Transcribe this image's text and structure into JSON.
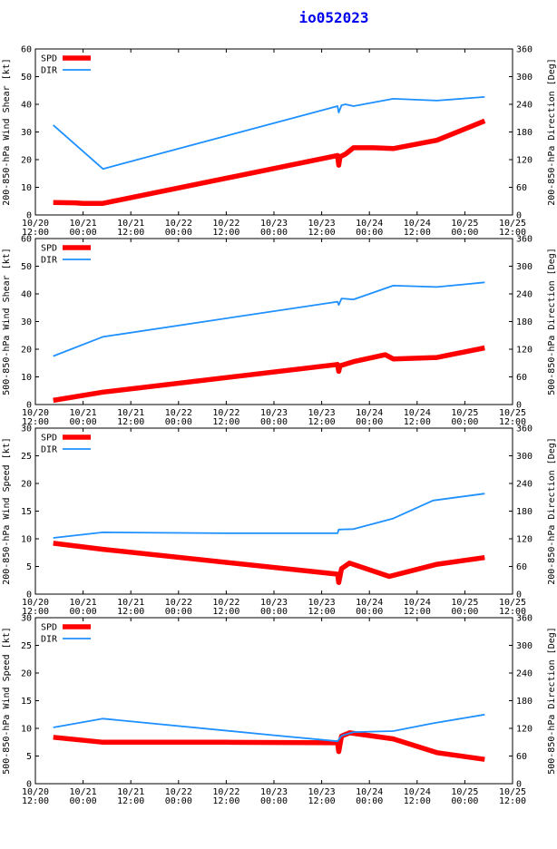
{
  "title": "io052023",
  "colors": {
    "spd": "#ff0000",
    "dir": "#1e90ff",
    "axis": "#000000",
    "title": "#0000ee"
  },
  "chart_data": {
    "type": "line",
    "x_ticks": [
      {
        "date": "10/20",
        "time": "12:00",
        "t": 0
      },
      {
        "date": "10/21",
        "time": "00:00",
        "t": 12
      },
      {
        "date": "10/21",
        "time": "12:00",
        "t": 24
      },
      {
        "date": "10/22",
        "time": "00:00",
        "t": 36
      },
      {
        "date": "10/22",
        "time": "12:00",
        "t": 48
      },
      {
        "date": "10/23",
        "time": "00:00",
        "t": 60
      },
      {
        "date": "10/23",
        "time": "12:00",
        "t": 72
      },
      {
        "date": "10/24",
        "time": "00:00",
        "t": 84
      },
      {
        "date": "10/24",
        "time": "12:00",
        "t": 96
      },
      {
        "date": "10/25",
        "time": "00:00",
        "t": 108
      },
      {
        "date": "10/25",
        "time": "12:00",
        "t": 120
      }
    ],
    "xlim": [
      0,
      120
    ],
    "panels": [
      {
        "ylabel_left": "200-850-hPa Wind Shear [kt]",
        "ylabel_right": "200-850-hPa Direction [Deg]",
        "ylim_left": [
          0,
          60
        ],
        "yticks_left": [
          0,
          10,
          20,
          30,
          40,
          50,
          60
        ],
        "ylim_right": [
          0,
          360
        ],
        "yticks_right": [
          0,
          60,
          120,
          180,
          240,
          300,
          360
        ],
        "legend": [
          "SPD",
          "DIR"
        ],
        "series": [
          {
            "name": "SPD",
            "axis": "left",
            "points": [
              [
                4.5,
                4.5
              ],
              [
                10,
                4.4
              ],
              [
                12,
                4.2
              ],
              [
                17,
                4.2
              ],
              [
                76,
                21.5
              ],
              [
                76.3,
                18
              ],
              [
                76.6,
                21
              ],
              [
                78,
                22
              ],
              [
                80,
                24.3
              ],
              [
                85,
                24.3
              ],
              [
                90,
                24
              ],
              [
                101,
                27
              ],
              [
                113,
                34
              ]
            ]
          },
          {
            "name": "DIR",
            "axis": "right",
            "points": [
              [
                4.5,
                195
              ],
              [
                17,
                100
              ],
              [
                76,
                236
              ],
              [
                76.3,
                222
              ],
              [
                77,
                238
              ],
              [
                78,
                240
              ],
              [
                80,
                236
              ],
              [
                90,
                252
              ],
              [
                101,
                248
              ],
              [
                113,
                256
              ]
            ]
          }
        ]
      },
      {
        "ylabel_left": "500-850-hPa Wind Shear [kt]",
        "ylabel_right": "500-850-hPa Direction [Deg]",
        "ylim_left": [
          0,
          60
        ],
        "yticks_left": [
          0,
          10,
          20,
          30,
          40,
          50,
          60
        ],
        "ylim_right": [
          0,
          360
        ],
        "yticks_right": [
          0,
          60,
          120,
          180,
          240,
          300,
          360
        ],
        "legend": [
          "SPD",
          "DIR"
        ],
        "series": [
          {
            "name": "SPD",
            "axis": "left",
            "points": [
              [
                4.5,
                1.5
              ],
              [
                17,
                4.5
              ],
              [
                76,
                14.5
              ],
              [
                76.3,
                12
              ],
              [
                76.6,
                14
              ],
              [
                80,
                15.5
              ],
              [
                88,
                18
              ],
              [
                90,
                16.5
              ],
              [
                101,
                17
              ],
              [
                113,
                20.5
              ]
            ]
          },
          {
            "name": "DIR",
            "axis": "right",
            "points": [
              [
                4.5,
                105
              ],
              [
                17,
                147
              ],
              [
                76,
                223
              ],
              [
                76.3,
                216
              ],
              [
                77,
                230
              ],
              [
                80,
                228
              ],
              [
                90,
                258
              ],
              [
                101,
                255
              ],
              [
                113,
                265
              ]
            ]
          }
        ]
      },
      {
        "ylabel_left": "200-850-hPa Wind Speed [kt]",
        "ylabel_right": "200-850-hPa Direction [Deg]",
        "ylim_left": [
          0,
          30
        ],
        "yticks_left": [
          0,
          5,
          10,
          15,
          20,
          25,
          30
        ],
        "ylim_right": [
          0,
          360
        ],
        "yticks_right": [
          0,
          60,
          120,
          180,
          240,
          300,
          360
        ],
        "legend": [
          "SPD",
          "DIR"
        ],
        "series": [
          {
            "name": "SPD",
            "axis": "left",
            "points": [
              [
                4.5,
                9.2
              ],
              [
                17,
                8.1
              ],
              [
                76,
                3.6
              ],
              [
                76.3,
                2.1
              ],
              [
                77,
                4.6
              ],
              [
                79,
                5.6
              ],
              [
                89,
                3.2
              ],
              [
                101,
                5.4
              ],
              [
                113,
                6.6
              ]
            ]
          },
          {
            "name": "DIR",
            "axis": "right",
            "points": [
              [
                4.5,
                122
              ],
              [
                17,
                134
              ],
              [
                48,
                132
              ],
              [
                76,
                132
              ],
              [
                76.3,
                140
              ],
              [
                80,
                141
              ],
              [
                90,
                164
              ],
              [
                100,
                203
              ],
              [
                113,
                218
              ]
            ]
          }
        ]
      },
      {
        "ylabel_left": "500-850-hPa Wind Speed [kt]",
        "ylabel_right": "500-850-hPa Direction [Deg]",
        "ylim_left": [
          0,
          30
        ],
        "yticks_left": [
          0,
          5,
          10,
          15,
          20,
          25,
          30
        ],
        "ylim_right": [
          0,
          360
        ],
        "yticks_right": [
          0,
          60,
          120,
          180,
          240,
          300,
          360
        ],
        "legend": [
          "SPD",
          "DIR"
        ],
        "series": [
          {
            "name": "SPD",
            "axis": "left",
            "points": [
              [
                4.5,
                8.4
              ],
              [
                17,
                7.5
              ],
              [
                48,
                7.5
              ],
              [
                76,
                7.4
              ],
              [
                76.3,
                5.8
              ],
              [
                77,
                8.6
              ],
              [
                79,
                9.2
              ],
              [
                90,
                8.1
              ],
              [
                101,
                5.6
              ],
              [
                113,
                4.4
              ]
            ]
          },
          {
            "name": "DIR",
            "axis": "right",
            "points": [
              [
                4.5,
                122
              ],
              [
                17,
                141
              ],
              [
                60,
                105
              ],
              [
                76,
                92
              ],
              [
                77,
                104
              ],
              [
                80,
                112
              ],
              [
                90,
                114
              ],
              [
                100,
                131
              ],
              [
                113,
                150
              ]
            ]
          }
        ]
      }
    ]
  }
}
